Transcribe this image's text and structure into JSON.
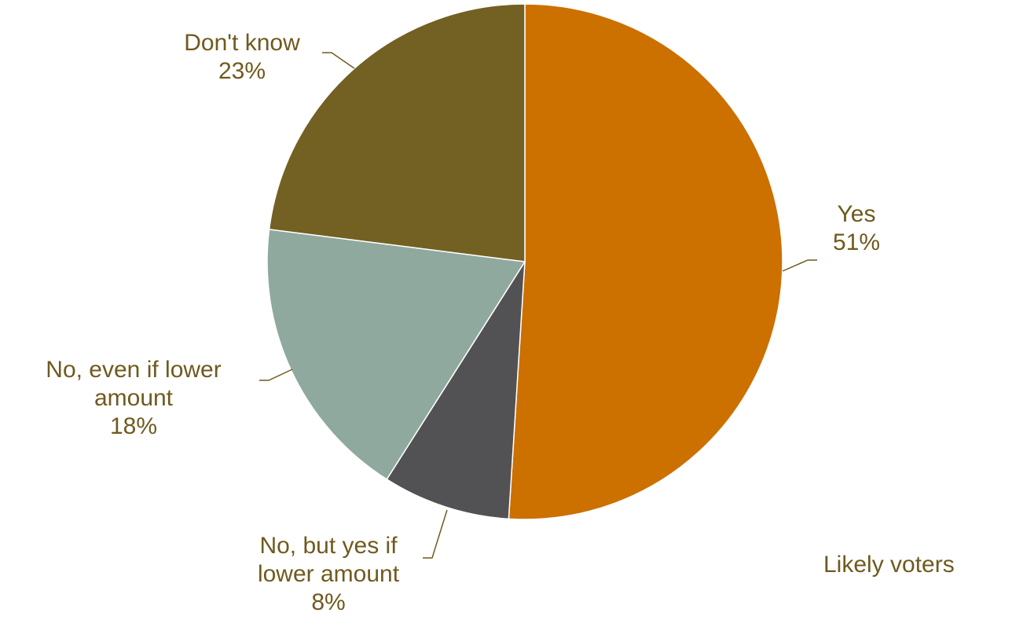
{
  "chart_data": {
    "type": "pie",
    "title": "",
    "slices": [
      {
        "label": [
          "Yes"
        ],
        "value": 51,
        "value_label": "51%",
        "color": "#CC7000"
      },
      {
        "label": [
          "No, but yes if",
          "lower amount"
        ],
        "value": 8,
        "value_label": "8%",
        "color": "#525254"
      },
      {
        "label": [
          "No, even if lower",
          "amount"
        ],
        "value": 18,
        "value_label": "18%",
        "color": "#8FA99E"
      },
      {
        "label": [
          "Don't know"
        ],
        "value": 23,
        "value_label": "23%",
        "color": "#736023"
      }
    ],
    "start_angle_deg": 0,
    "direction": "clockwise",
    "label_color": "#6F5A1E",
    "legend": "none",
    "annotation": "Likely voters"
  }
}
